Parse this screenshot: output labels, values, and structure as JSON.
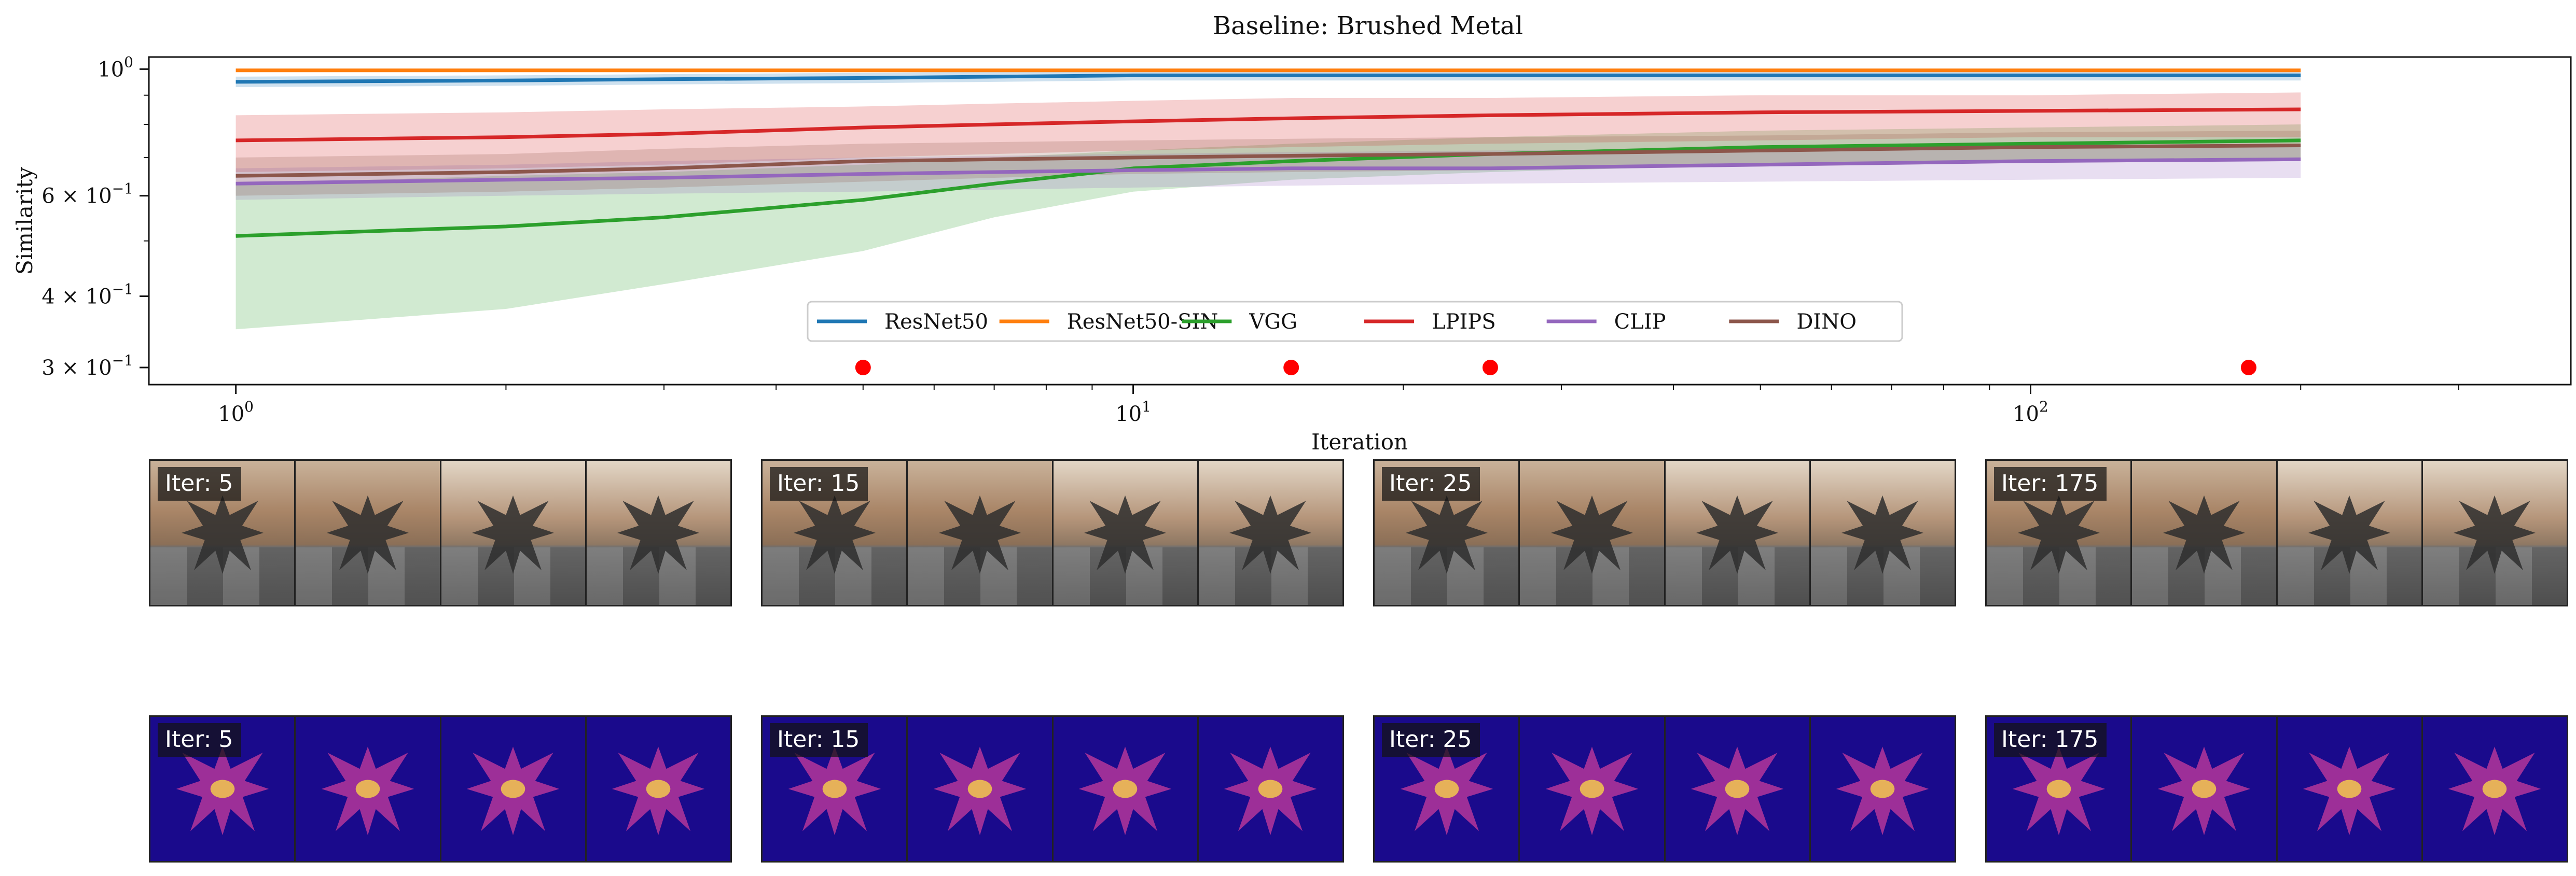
{
  "chart_data": {
    "type": "line",
    "title": "Baseline: Brushed Metal",
    "xlabel": "Iteration",
    "ylabel": "Similarity",
    "xscale": "log",
    "yscale": "log",
    "xlim": [
      0.8,
      400
    ],
    "ylim": [
      0.28,
      1.05
    ],
    "x_ticks": [
      {
        "value": 1,
        "base": "10",
        "exp": "0"
      },
      {
        "value": 10,
        "base": "10",
        "exp": "1"
      },
      {
        "value": 100,
        "base": "10",
        "exp": "2"
      }
    ],
    "y_ticks": [
      {
        "value": 1.0,
        "coef": "",
        "base": "10",
        "exp": "0"
      },
      {
        "value": 0.6,
        "coef": "6 × ",
        "base": "10",
        "exp": "−1"
      },
      {
        "value": 0.4,
        "coef": "4 × ",
        "base": "10",
        "exp": "−1"
      },
      {
        "value": 0.3,
        "coef": "3 × ",
        "base": "10",
        "exp": "−1"
      }
    ],
    "x": [
      1,
      2,
      3,
      5,
      7,
      10,
      15,
      25,
      50,
      100,
      200
    ],
    "series": [
      {
        "name": "ResNet50",
        "color": "#1f77b4",
        "values": [
          0.95,
          0.955,
          0.96,
          0.965,
          0.97,
          0.975,
          0.975,
          0.975,
          0.975,
          0.975,
          0.975
        ],
        "lower": [
          0.93,
          0.935,
          0.94,
          0.945,
          0.95,
          0.955,
          0.955,
          0.955,
          0.955,
          0.955,
          0.955
        ],
        "upper": [
          0.97,
          0.975,
          0.98,
          0.985,
          0.99,
          0.995,
          0.995,
          0.995,
          0.995,
          0.995,
          0.995
        ]
      },
      {
        "name": "ResNet50-SIN",
        "color": "#ff7f0e",
        "values": [
          0.995,
          0.995,
          0.995,
          0.995,
          0.995,
          0.995,
          0.995,
          0.995,
          0.995,
          0.995,
          0.995
        ],
        "lower": [
          0.99,
          0.99,
          0.99,
          0.99,
          0.99,
          0.99,
          0.99,
          0.99,
          0.99,
          0.99,
          0.99
        ],
        "upper": [
          1.0,
          1.0,
          1.0,
          1.0,
          1.0,
          1.0,
          1.0,
          1.0,
          1.0,
          1.0,
          1.0
        ]
      },
      {
        "name": "VGG",
        "color": "#2ca02c",
        "values": [
          0.51,
          0.53,
          0.55,
          0.59,
          0.63,
          0.67,
          0.69,
          0.71,
          0.73,
          0.74,
          0.75
        ],
        "lower": [
          0.35,
          0.38,
          0.42,
          0.48,
          0.55,
          0.61,
          0.64,
          0.66,
          0.68,
          0.69,
          0.7
        ],
        "upper": [
          0.63,
          0.65,
          0.66,
          0.68,
          0.7,
          0.72,
          0.74,
          0.76,
          0.78,
          0.79,
          0.8
        ]
      },
      {
        "name": "LPIPS",
        "color": "#d62728",
        "values": [
          0.75,
          0.76,
          0.77,
          0.79,
          0.8,
          0.81,
          0.82,
          0.83,
          0.84,
          0.845,
          0.85
        ],
        "lower": [
          0.66,
          0.67,
          0.68,
          0.7,
          0.71,
          0.72,
          0.73,
          0.74,
          0.75,
          0.76,
          0.76
        ],
        "upper": [
          0.83,
          0.84,
          0.85,
          0.86,
          0.87,
          0.88,
          0.89,
          0.89,
          0.9,
          0.9,
          0.91
        ]
      },
      {
        "name": "CLIP",
        "color": "#9467bd",
        "values": [
          0.63,
          0.64,
          0.645,
          0.655,
          0.66,
          0.665,
          0.67,
          0.67,
          0.68,
          0.69,
          0.695
        ],
        "lower": [
          0.59,
          0.6,
          0.605,
          0.61,
          0.615,
          0.62,
          0.625,
          0.63,
          0.635,
          0.64,
          0.645
        ],
        "upper": [
          0.67,
          0.68,
          0.69,
          0.7,
          0.705,
          0.71,
          0.715,
          0.72,
          0.725,
          0.73,
          0.735
        ]
      },
      {
        "name": "DINO",
        "color": "#8c564b",
        "values": [
          0.65,
          0.66,
          0.67,
          0.69,
          0.695,
          0.7,
          0.705,
          0.71,
          0.72,
          0.73,
          0.735
        ],
        "lower": [
          0.6,
          0.61,
          0.62,
          0.635,
          0.645,
          0.655,
          0.66,
          0.665,
          0.675,
          0.685,
          0.69
        ],
        "upper": [
          0.7,
          0.71,
          0.725,
          0.74,
          0.745,
          0.75,
          0.755,
          0.76,
          0.765,
          0.775,
          0.78
        ]
      }
    ],
    "markers": {
      "x": [
        5,
        15,
        25,
        175
      ],
      "y": 0.3,
      "color": "#ff0000"
    },
    "legend": {
      "placement": "lower-center",
      "ncol": 6
    },
    "grid": false
  },
  "panels": [
    {
      "label": "Iter: 5"
    },
    {
      "label": "Iter: 15"
    },
    {
      "label": "Iter: 25"
    },
    {
      "label": "Iter: 175"
    }
  ],
  "colors": {
    "heatmap_background": "#1a0a8c",
    "heatmap_hot": "#f9d24a",
    "render_wall": "#a98567",
    "render_floor": "#5a5a5a"
  }
}
